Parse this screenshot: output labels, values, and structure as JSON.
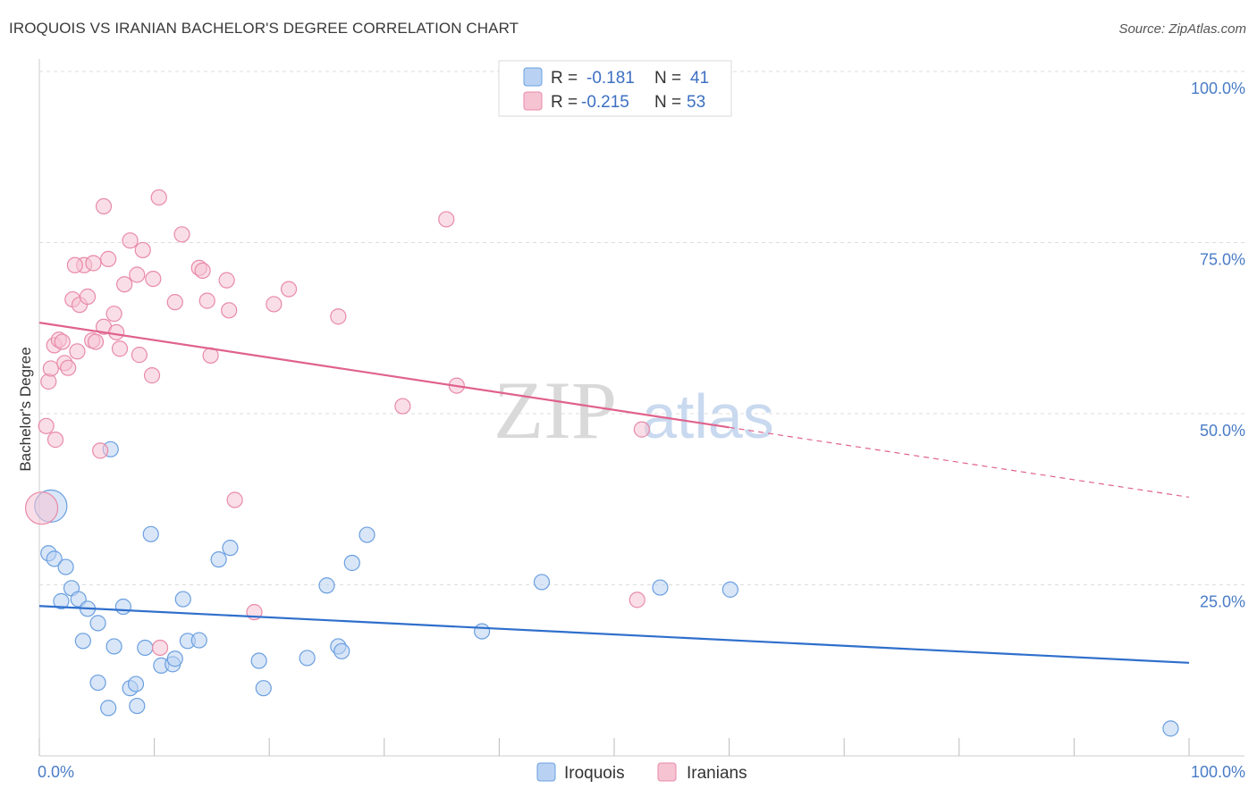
{
  "title": "IROQUOIS VS IRANIAN BACHELOR'S DEGREE CORRELATION CHART",
  "source": "Source: ZipAtlas.com",
  "watermark": {
    "zip": "ZIP",
    "atlas": "atlas"
  },
  "colors": {
    "blue": "#6a9fe0",
    "blue_fill": "#b9d2f3",
    "blue_line": "#2f6fcc",
    "pink": "#e88aa8",
    "pink_fill": "#f6c3d3",
    "pink_line": "#e0628c",
    "grid": "#dddddd",
    "tick_text": "#4a7cc7"
  },
  "legend": {
    "r_label": "R =",
    "n_label": "N =",
    "series": [
      {
        "r": "-0.181",
        "n": "41"
      },
      {
        "r": "-0.215",
        "n": "53"
      }
    ]
  },
  "chart_data": {
    "type": "scatter",
    "title": "IROQUOIS VS IRANIAN BACHELOR'S DEGREE CORRELATION CHART",
    "xlabel": "",
    "ylabel": "Bachelor's Degree",
    "xlim": [
      0,
      100
    ],
    "ylim": [
      0,
      100
    ],
    "x_ticks": [
      "0.0%",
      "100.0%"
    ],
    "y_ticks": [
      {
        "value": 100,
        "label": "100.0%"
      },
      {
        "value": 75,
        "label": "75.0%"
      },
      {
        "value": 50,
        "label": "50.0%"
      },
      {
        "value": 25,
        "label": "25.0%"
      }
    ],
    "legend_entries": [
      "Iroquois",
      "Iranians"
    ],
    "series": [
      {
        "name": "Iroquois",
        "color": "#6a9fe0",
        "trend": {
          "x": [
            0,
            100
          ],
          "y": [
            21.9,
            13.6
          ]
        },
        "points": [
          [
            1,
            36.5
          ],
          [
            0.8,
            29.6
          ],
          [
            1.3,
            28.8
          ],
          [
            2.3,
            27.6
          ],
          [
            2.8,
            24.5
          ],
          [
            3.4,
            22.9
          ],
          [
            1.9,
            22.6
          ],
          [
            4.2,
            21.5
          ],
          [
            5.1,
            19.4
          ],
          [
            7.3,
            21.8
          ],
          [
            3.8,
            16.8
          ],
          [
            6.5,
            16.0
          ],
          [
            9.2,
            15.8
          ],
          [
            10.6,
            13.2
          ],
          [
            11.6,
            13.4
          ],
          [
            11.8,
            14.2
          ],
          [
            12.9,
            16.8
          ],
          [
            13.9,
            16.9
          ],
          [
            12.5,
            22.9
          ],
          [
            5.1,
            10.7
          ],
          [
            7.9,
            9.9
          ],
          [
            8.4,
            10.5
          ],
          [
            6.0,
            7.0
          ],
          [
            8.5,
            7.3
          ],
          [
            6.2,
            44.8
          ],
          [
            9.7,
            32.4
          ],
          [
            15.6,
            28.7
          ],
          [
            16.6,
            30.4
          ],
          [
            19.1,
            13.9
          ],
          [
            19.5,
            9.9
          ],
          [
            23.3,
            14.3
          ],
          [
            25.0,
            24.9
          ],
          [
            26.0,
            16.0
          ],
          [
            26.3,
            15.3
          ],
          [
            27.2,
            28.2
          ],
          [
            28.5,
            32.3
          ],
          [
            38.5,
            18.2
          ],
          [
            43.7,
            25.4
          ],
          [
            54.0,
            24.6
          ],
          [
            60.1,
            24.3
          ],
          [
            98.4,
            4.0
          ]
        ]
      },
      {
        "name": "Iranians",
        "color": "#e88aa8",
        "trend": {
          "x": [
            0,
            60
          ],
          "y": [
            63.3,
            48.0
          ]
        },
        "trend_dashed": {
          "x": [
            60,
            100
          ],
          "y": [
            48.0,
            37.8
          ]
        },
        "points": [
          [
            0.6,
            48.2
          ],
          [
            1.4,
            46.2
          ],
          [
            0.8,
            54.7
          ],
          [
            1.0,
            56.6
          ],
          [
            1.3,
            60.0
          ],
          [
            1.7,
            60.8
          ],
          [
            2.2,
            57.4
          ],
          [
            2.5,
            56.7
          ],
          [
            3.3,
            59.1
          ],
          [
            2.9,
            66.7
          ],
          [
            3.5,
            65.9
          ],
          [
            4.2,
            67.1
          ],
          [
            3.9,
            71.7
          ],
          [
            3.1,
            71.7
          ],
          [
            4.7,
            72.0
          ],
          [
            4.6,
            60.7
          ],
          [
            4.9,
            60.5
          ],
          [
            5.3,
            44.6
          ],
          [
            5.6,
            62.7
          ],
          [
            6.5,
            64.6
          ],
          [
            6.7,
            61.9
          ],
          [
            7.0,
            59.5
          ],
          [
            7.4,
            68.9
          ],
          [
            8.5,
            70.3
          ],
          [
            8.7,
            58.6
          ],
          [
            6.0,
            72.6
          ],
          [
            7.9,
            75.3
          ],
          [
            9.0,
            73.9
          ],
          [
            9.9,
            69.7
          ],
          [
            10.4,
            81.6
          ],
          [
            5.6,
            80.3
          ],
          [
            12.4,
            76.2
          ],
          [
            11.8,
            66.3
          ],
          [
            13.9,
            71.3
          ],
          [
            14.2,
            70.9
          ],
          [
            14.6,
            66.5
          ],
          [
            14.9,
            58.5
          ],
          [
            16.3,
            69.5
          ],
          [
            16.5,
            65.1
          ],
          [
            17.0,
            37.4
          ],
          [
            18.7,
            21.0
          ],
          [
            20.4,
            66.0
          ],
          [
            21.7,
            68.2
          ],
          [
            26.0,
            64.2
          ],
          [
            31.6,
            51.1
          ],
          [
            35.4,
            78.4
          ],
          [
            36.3,
            54.1
          ],
          [
            52.4,
            47.7
          ],
          [
            52.0,
            22.8
          ],
          [
            9.8,
            55.6
          ],
          [
            10.5,
            15.8
          ],
          [
            2.0,
            60.5
          ],
          [
            0.2,
            36.2
          ]
        ]
      }
    ]
  }
}
